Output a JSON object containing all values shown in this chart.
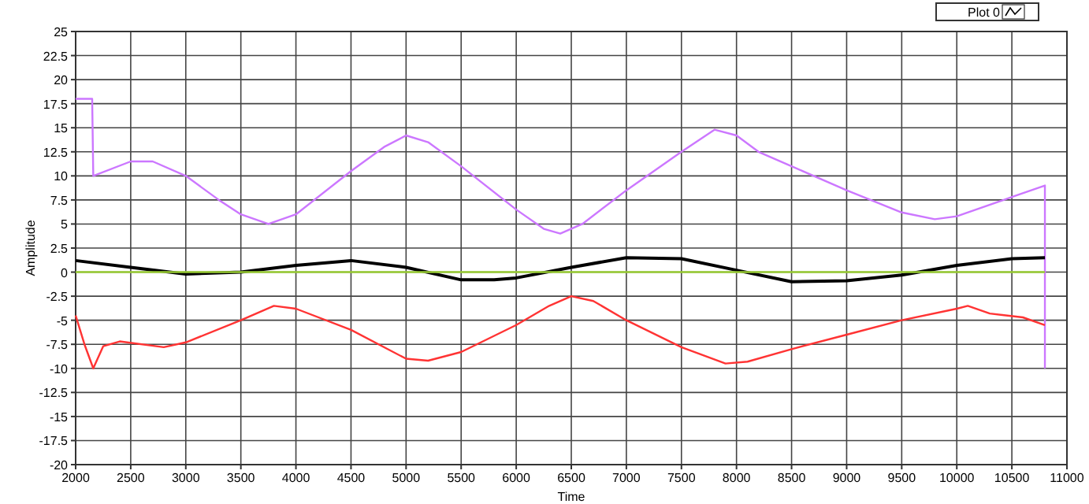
{
  "chart_data": {
    "type": "line",
    "xlabel": "Time",
    "ylabel": "Amplitude",
    "xlim": [
      2000,
      11000
    ],
    "ylim": [
      -20,
      25
    ],
    "xticks": [
      2000,
      2500,
      3000,
      3500,
      4000,
      4500,
      5000,
      5500,
      6000,
      6500,
      7000,
      7500,
      8000,
      8500,
      9000,
      9500,
      10000,
      10500,
      11000
    ],
    "yticks": [
      -20,
      -17.5,
      -15,
      -12.5,
      -10,
      -7.5,
      -5,
      -2.5,
      0,
      2.5,
      5,
      7.5,
      10,
      12.5,
      15,
      17.5,
      20,
      22.5,
      25
    ],
    "grid": true,
    "legend": "top right",
    "marker": "none",
    "line_style": "solid",
    "series": [
      {
        "color": "#cc77ff",
        "x": [
          2000,
          2150,
          2160,
          2500,
          2700,
          3000,
          3300,
          3500,
          3750,
          4000,
          4500,
          4800,
          5000,
          5200,
          5500,
          6000,
          6250,
          6400,
          6600,
          7000,
          7500,
          7800,
          8000,
          8200,
          8500,
          9000,
          9500,
          9800,
          10000,
          10500,
          10800,
          10800
        ],
        "values": [
          18,
          18,
          10,
          11.5,
          11.5,
          10,
          7.5,
          6,
          5,
          6,
          10.5,
          13,
          14.2,
          13.5,
          11,
          6.5,
          4.5,
          4,
          5,
          8.5,
          12.5,
          14.8,
          14.2,
          12.5,
          11,
          8.5,
          6.2,
          5.5,
          5.8,
          7.8,
          9,
          -10
        ]
      },
      {
        "name": "Plot 0",
        "color": "#000000",
        "x": [
          2000,
          2500,
          3000,
          3500,
          4000,
          4500,
          5000,
          5500,
          5800,
          6000,
          6500,
          7000,
          7500,
          8000,
          8500,
          9000,
          9500,
          10000,
          10500,
          10800
        ],
        "values": [
          1.2,
          0.5,
          -0.2,
          0,
          0.7,
          1.2,
          0.5,
          -0.8,
          -0.8,
          -0.6,
          0.5,
          1.5,
          1.4,
          0.2,
          -1,
          -0.9,
          -0.3,
          0.7,
          1.4,
          1.5
        ]
      },
      {
        "color": "#99cc33",
        "x": [
          2000,
          10800
        ],
        "values": [
          0,
          0
        ]
      },
      {
        "color": "#ff3333",
        "x": [
          2000,
          2080,
          2160,
          2250,
          2400,
          2800,
          3000,
          3500,
          3800,
          4000,
          4500,
          5000,
          5200,
          5500,
          6000,
          6300,
          6500,
          6700,
          7000,
          7500,
          7900,
          8100,
          8500,
          9000,
          9500,
          10000,
          10100,
          10300,
          10600,
          10800
        ],
        "values": [
          -4.5,
          -7.5,
          -10,
          -7.7,
          -7.2,
          -7.8,
          -7.3,
          -5,
          -3.5,
          -3.8,
          -6,
          -9,
          -9.2,
          -8.3,
          -5.5,
          -3.5,
          -2.5,
          -3,
          -5,
          -7.8,
          -9.5,
          -9.3,
          -8,
          -6.5,
          -5,
          -3.8,
          -3.5,
          -4.3,
          -4.7,
          -5.5
        ]
      }
    ]
  }
}
